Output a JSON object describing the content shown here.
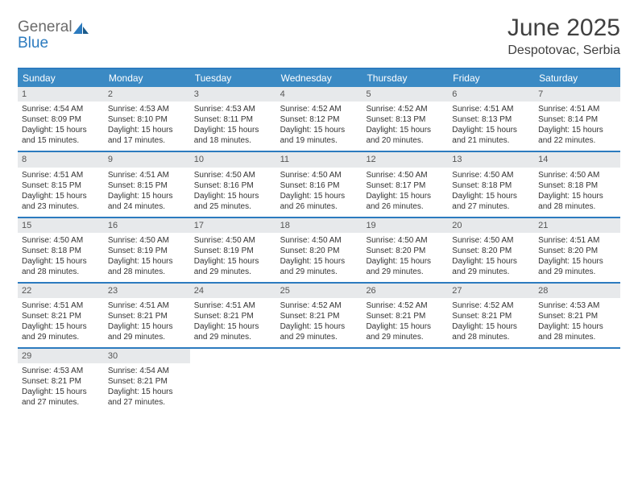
{
  "logo": {
    "general": "General",
    "blue": "Blue"
  },
  "title": "June 2025",
  "location": "Despotovac, Serbia",
  "header_bg": "#3b8ac4",
  "border_color": "#2c7bbf",
  "daynum_bg": "#e7e9eb",
  "weekdays": [
    "Sunday",
    "Monday",
    "Tuesday",
    "Wednesday",
    "Thursday",
    "Friday",
    "Saturday"
  ],
  "weeks": [
    [
      {
        "n": "1",
        "sr": "4:54 AM",
        "ss": "8:09 PM",
        "dl": "15 hours and 15 minutes."
      },
      {
        "n": "2",
        "sr": "4:53 AM",
        "ss": "8:10 PM",
        "dl": "15 hours and 17 minutes."
      },
      {
        "n": "3",
        "sr": "4:53 AM",
        "ss": "8:11 PM",
        "dl": "15 hours and 18 minutes."
      },
      {
        "n": "4",
        "sr": "4:52 AM",
        "ss": "8:12 PM",
        "dl": "15 hours and 19 minutes."
      },
      {
        "n": "5",
        "sr": "4:52 AM",
        "ss": "8:13 PM",
        "dl": "15 hours and 20 minutes."
      },
      {
        "n": "6",
        "sr": "4:51 AM",
        "ss": "8:13 PM",
        "dl": "15 hours and 21 minutes."
      },
      {
        "n": "7",
        "sr": "4:51 AM",
        "ss": "8:14 PM",
        "dl": "15 hours and 22 minutes."
      }
    ],
    [
      {
        "n": "8",
        "sr": "4:51 AM",
        "ss": "8:15 PM",
        "dl": "15 hours and 23 minutes."
      },
      {
        "n": "9",
        "sr": "4:51 AM",
        "ss": "8:15 PM",
        "dl": "15 hours and 24 minutes."
      },
      {
        "n": "10",
        "sr": "4:50 AM",
        "ss": "8:16 PM",
        "dl": "15 hours and 25 minutes."
      },
      {
        "n": "11",
        "sr": "4:50 AM",
        "ss": "8:16 PM",
        "dl": "15 hours and 26 minutes."
      },
      {
        "n": "12",
        "sr": "4:50 AM",
        "ss": "8:17 PM",
        "dl": "15 hours and 26 minutes."
      },
      {
        "n": "13",
        "sr": "4:50 AM",
        "ss": "8:18 PM",
        "dl": "15 hours and 27 minutes."
      },
      {
        "n": "14",
        "sr": "4:50 AM",
        "ss": "8:18 PM",
        "dl": "15 hours and 28 minutes."
      }
    ],
    [
      {
        "n": "15",
        "sr": "4:50 AM",
        "ss": "8:18 PM",
        "dl": "15 hours and 28 minutes."
      },
      {
        "n": "16",
        "sr": "4:50 AM",
        "ss": "8:19 PM",
        "dl": "15 hours and 28 minutes."
      },
      {
        "n": "17",
        "sr": "4:50 AM",
        "ss": "8:19 PM",
        "dl": "15 hours and 29 minutes."
      },
      {
        "n": "18",
        "sr": "4:50 AM",
        "ss": "8:20 PM",
        "dl": "15 hours and 29 minutes."
      },
      {
        "n": "19",
        "sr": "4:50 AM",
        "ss": "8:20 PM",
        "dl": "15 hours and 29 minutes."
      },
      {
        "n": "20",
        "sr": "4:50 AM",
        "ss": "8:20 PM",
        "dl": "15 hours and 29 minutes."
      },
      {
        "n": "21",
        "sr": "4:51 AM",
        "ss": "8:20 PM",
        "dl": "15 hours and 29 minutes."
      }
    ],
    [
      {
        "n": "22",
        "sr": "4:51 AM",
        "ss": "8:21 PM",
        "dl": "15 hours and 29 minutes."
      },
      {
        "n": "23",
        "sr": "4:51 AM",
        "ss": "8:21 PM",
        "dl": "15 hours and 29 minutes."
      },
      {
        "n": "24",
        "sr": "4:51 AM",
        "ss": "8:21 PM",
        "dl": "15 hours and 29 minutes."
      },
      {
        "n": "25",
        "sr": "4:52 AM",
        "ss": "8:21 PM",
        "dl": "15 hours and 29 minutes."
      },
      {
        "n": "26",
        "sr": "4:52 AM",
        "ss": "8:21 PM",
        "dl": "15 hours and 29 minutes."
      },
      {
        "n": "27",
        "sr": "4:52 AM",
        "ss": "8:21 PM",
        "dl": "15 hours and 28 minutes."
      },
      {
        "n": "28",
        "sr": "4:53 AM",
        "ss": "8:21 PM",
        "dl": "15 hours and 28 minutes."
      }
    ],
    [
      {
        "n": "29",
        "sr": "4:53 AM",
        "ss": "8:21 PM",
        "dl": "15 hours and 27 minutes."
      },
      {
        "n": "30",
        "sr": "4:54 AM",
        "ss": "8:21 PM",
        "dl": "15 hours and 27 minutes."
      },
      null,
      null,
      null,
      null,
      null
    ]
  ],
  "labels": {
    "sunrise": "Sunrise: ",
    "sunset": "Sunset: ",
    "daylight": "Daylight: "
  }
}
